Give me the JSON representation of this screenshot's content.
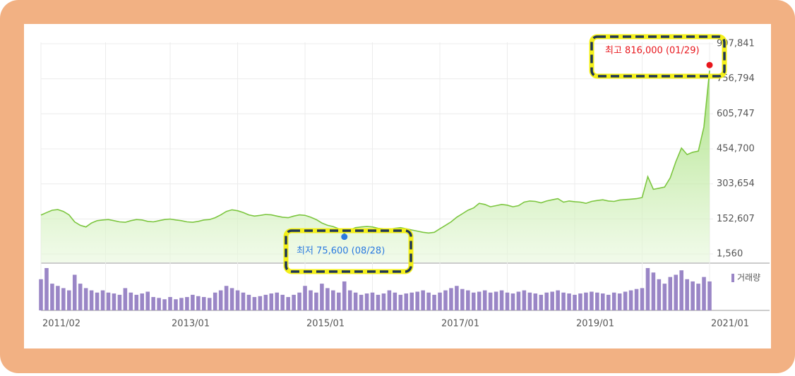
{
  "chart_data": {
    "type": "stock",
    "categories": [
      "2011/02",
      "2011/03",
      "2011/04",
      "2011/05",
      "2011/06",
      "2011/07",
      "2011/08",
      "2011/09",
      "2011/10",
      "2011/11",
      "2011/12",
      "2012/01",
      "2012/02",
      "2012/03",
      "2012/04",
      "2012/05",
      "2012/06",
      "2012/07",
      "2012/08",
      "2012/09",
      "2012/10",
      "2012/11",
      "2012/12",
      "2013/01",
      "2013/02",
      "2013/03",
      "2013/04",
      "2013/05",
      "2013/06",
      "2013/07",
      "2013/08",
      "2013/09",
      "2013/10",
      "2013/11",
      "2013/12",
      "2014/01",
      "2014/02",
      "2014/03",
      "2014/04",
      "2014/05",
      "2014/06",
      "2014/07",
      "2014/08",
      "2014/09",
      "2014/10",
      "2014/11",
      "2014/12",
      "2015/01",
      "2015/02",
      "2015/03",
      "2015/04",
      "2015/05",
      "2015/06",
      "2015/07",
      "2015/08",
      "2015/09",
      "2015/10",
      "2015/11",
      "2015/12",
      "2016/01",
      "2016/02",
      "2016/03",
      "2016/04",
      "2016/05",
      "2016/06",
      "2016/07",
      "2016/08",
      "2016/09",
      "2016/10",
      "2016/11",
      "2016/12",
      "2017/01",
      "2017/02",
      "2017/03",
      "2017/04",
      "2017/05",
      "2017/06",
      "2017/07",
      "2017/08",
      "2017/09",
      "2017/10",
      "2017/11",
      "2017/12",
      "2018/01",
      "2018/02",
      "2018/03",
      "2018/04",
      "2018/05",
      "2018/06",
      "2018/07",
      "2018/08",
      "2018/09",
      "2018/10",
      "2018/11",
      "2018/12",
      "2019/01",
      "2019/02",
      "2019/03",
      "2019/04",
      "2019/05",
      "2019/06",
      "2019/07",
      "2019/08",
      "2019/09",
      "2019/10",
      "2019/11",
      "2019/12",
      "2020/01",
      "2020/02",
      "2020/03",
      "2020/04",
      "2020/05",
      "2020/06",
      "2020/07",
      "2020/08",
      "2020/09",
      "2020/10",
      "2020/11",
      "2020/12",
      "2021/01"
    ],
    "values": [
      169000,
      180000,
      190000,
      193000,
      185000,
      170000,
      140000,
      125000,
      118000,
      135000,
      145000,
      148000,
      150000,
      145000,
      140000,
      138000,
      145000,
      150000,
      148000,
      142000,
      140000,
      145000,
      150000,
      152000,
      148000,
      145000,
      140000,
      138000,
      142000,
      148000,
      150000,
      158000,
      170000,
      185000,
      192000,
      188000,
      180000,
      170000,
      165000,
      168000,
      172000,
      170000,
      165000,
      160000,
      158000,
      165000,
      170000,
      168000,
      160000,
      150000,
      135000,
      125000,
      120000,
      110000,
      90000,
      105000,
      115000,
      118000,
      120000,
      118000,
      112000,
      110000,
      108000,
      112000,
      115000,
      110000,
      105000,
      100000,
      95000,
      92000,
      95000,
      110000,
      125000,
      140000,
      160000,
      175000,
      190000,
      200000,
      220000,
      215000,
      205000,
      210000,
      215000,
      212000,
      205000,
      210000,
      225000,
      230000,
      228000,
      222000,
      230000,
      235000,
      240000,
      225000,
      230000,
      227000,
      225000,
      220000,
      228000,
      232000,
      235000,
      230000,
      228000,
      234000,
      236000,
      238000,
      240000,
      245000,
      335000,
      280000,
      285000,
      290000,
      330000,
      400000,
      458000,
      430000,
      440000,
      445000,
      549000,
      792000
    ],
    "color": "#7cc63f",
    "volume": {
      "name": "거래량",
      "color": "#9a86c6",
      "values": [
        70,
        95,
        60,
        55,
        50,
        45,
        80,
        60,
        50,
        45,
        40,
        45,
        40,
        38,
        35,
        50,
        40,
        35,
        38,
        42,
        30,
        28,
        25,
        30,
        25,
        28,
        30,
        35,
        32,
        30,
        28,
        40,
        45,
        55,
        50,
        45,
        40,
        35,
        30,
        32,
        35,
        38,
        40,
        35,
        30,
        35,
        40,
        55,
        45,
        40,
        60,
        50,
        45,
        40,
        65,
        45,
        40,
        35,
        38,
        40,
        35,
        38,
        45,
        40,
        35,
        38,
        40,
        42,
        45,
        40,
        35,
        40,
        45,
        50,
        55,
        48,
        45,
        40,
        42,
        45,
        40,
        42,
        45,
        40,
        38,
        42,
        45,
        40,
        38,
        35,
        40,
        42,
        45,
        40,
        38,
        35,
        38,
        40,
        42,
        40,
        38,
        35,
        40,
        38,
        42,
        45,
        48,
        50,
        95,
        85,
        70,
        60,
        75,
        80,
        90,
        70,
        65,
        60,
        75,
        65
      ]
    },
    "ylim": [
      1560,
      907841
    ],
    "yticks": [
      {
        "value": 1560,
        "label": "1,560"
      },
      {
        "value": 152607,
        "label": "152,607"
      },
      {
        "value": 303654,
        "label": "303,654"
      },
      {
        "value": 454700,
        "label": "454,700"
      },
      {
        "value": 605747,
        "label": "605,747"
      },
      {
        "value": 756794,
        "label": "756,794"
      },
      {
        "value": 907841,
        "label": "907,841"
      }
    ],
    "xticks": [
      "2011/02",
      "2013/01",
      "2015/01",
      "2017/01",
      "2019/01",
      "2021/01"
    ],
    "high": {
      "text": "최고 816,000 (01/29)",
      "value": 816000,
      "x": "2021/01",
      "color": "#e8161c"
    },
    "low": {
      "text": "최저 75,600 (08/28)",
      "value": 75600,
      "x": "2015/08",
      "color": "#2a7ae0"
    },
    "grid": true
  }
}
